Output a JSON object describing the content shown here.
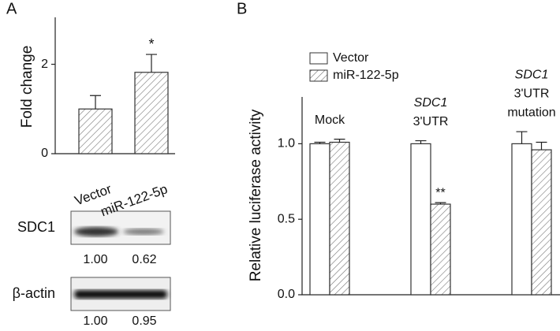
{
  "chart_data": [
    {
      "type": "bar",
      "panel": "A",
      "ylabel": "Fold change",
      "categories": [
        "Vector",
        "miR-122-5p"
      ],
      "values": [
        1.0,
        1.82
      ],
      "errors": [
        0.3,
        0.4
      ],
      "annotations": [
        null,
        "*"
      ],
      "ylim": [
        0,
        3.05
      ],
      "yticks": [
        0,
        2
      ]
    },
    {
      "type": "grouped-bar",
      "panel": "B",
      "ylabel": "Relative luciferase activity",
      "categories": [
        [
          "Mock"
        ],
        [
          "SDC1",
          "3'UTR"
        ],
        [
          "SDC1",
          "3'UTR",
          "mutation"
        ]
      ],
      "series": [
        {
          "name": "Vector",
          "fill": "open",
          "values": [
            1.0,
            1.0,
            1.0
          ],
          "errors": [
            0.01,
            0.02,
            0.08
          ],
          "annotations": [
            null,
            null,
            null
          ]
        },
        {
          "name": "miR-122-5p",
          "fill": "hatch",
          "values": [
            1.01,
            0.6,
            0.96
          ],
          "errors": [
            0.02,
            0.01,
            0.05
          ],
          "annotations": [
            null,
            "**",
            null
          ]
        }
      ],
      "ylim": [
        0,
        1.31
      ],
      "yticks": [
        {
          "value": 0,
          "label": "0.0"
        },
        {
          "value": 0.5,
          "label": "0.5"
        },
        {
          "value": 1,
          "label": "1.0"
        }
      ]
    }
  ],
  "blot": {
    "rows": [
      {
        "label": "SDC1",
        "values": [
          "1.00",
          "0.62"
        ]
      },
      {
        "label": "β-actin",
        "values": [
          "1.00",
          "0.95"
        ]
      }
    ]
  }
}
